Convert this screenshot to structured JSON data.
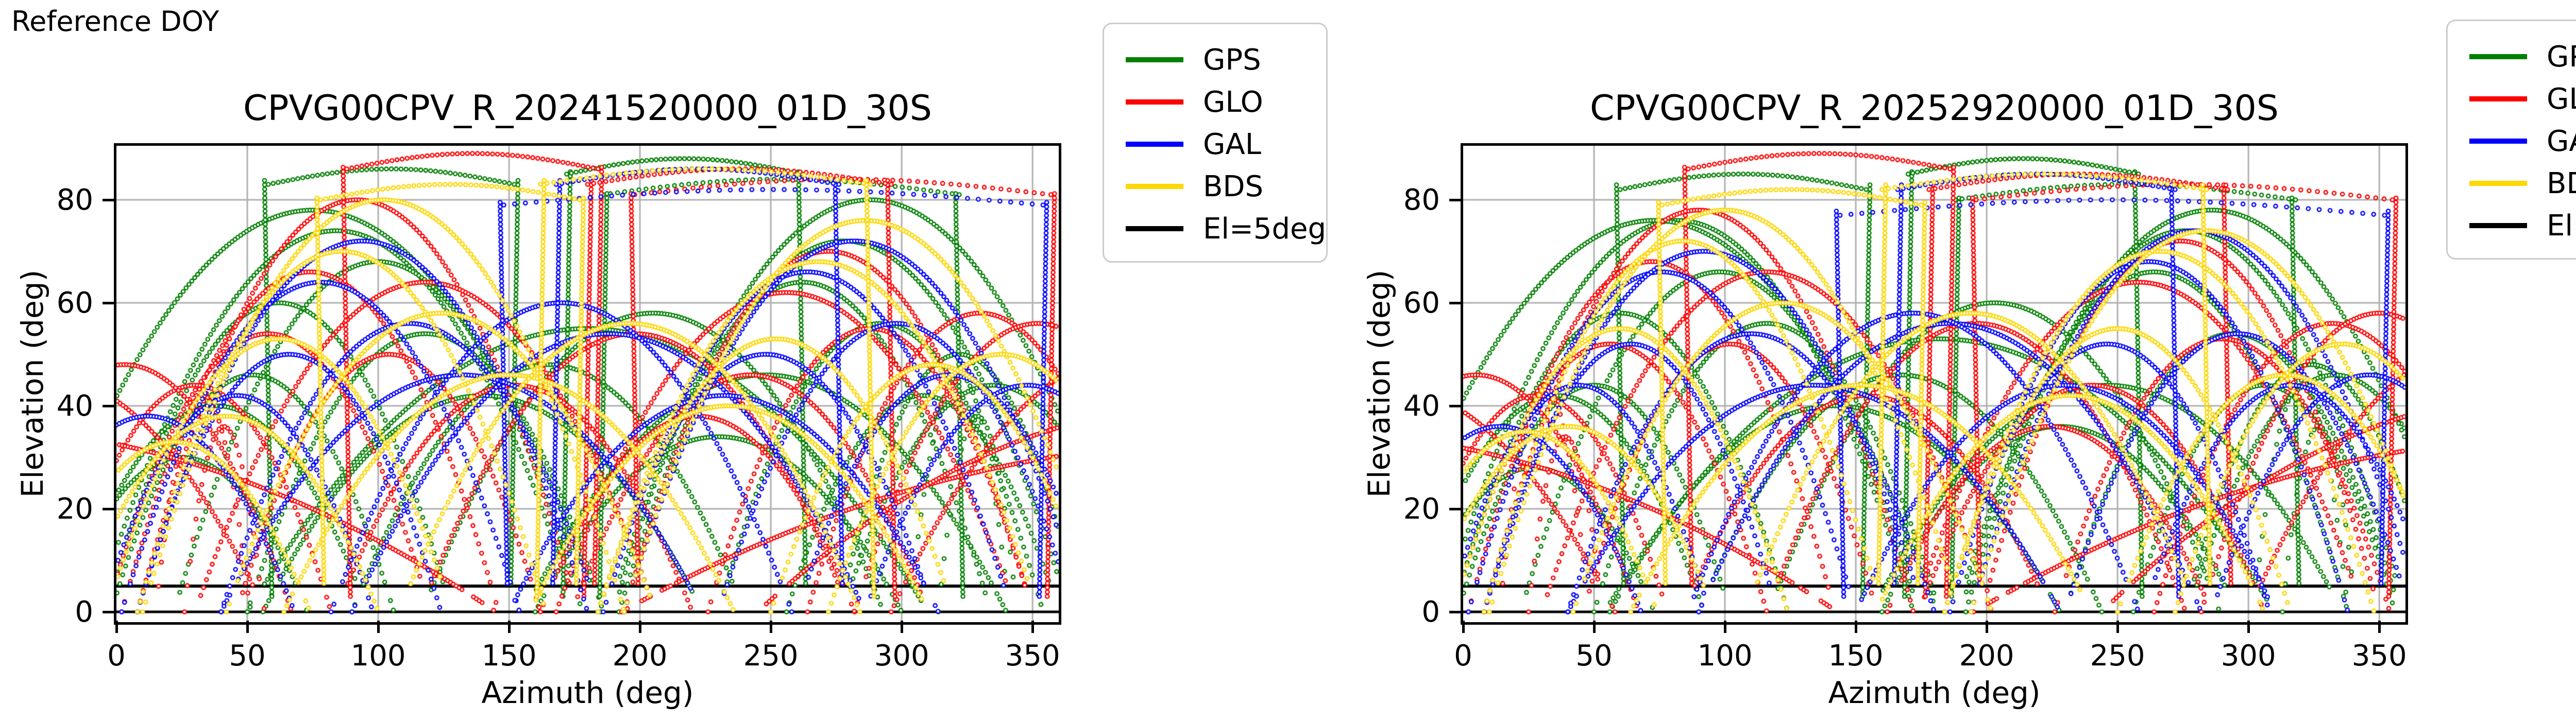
{
  "page": {
    "annotation": "Reference DOY",
    "background": "#ffffff"
  },
  "colors": {
    "GPS": "#008000",
    "GLO": "#ff0000",
    "GAL": "#0000ff",
    "BDS": "#ffd700",
    "threshold": "#000000",
    "zero_line": "#000000",
    "grid": "#b0b0b0",
    "spine": "#000000"
  },
  "legend": {
    "entries": [
      {
        "label": "GPS",
        "color": "#008000"
      },
      {
        "label": "GLO",
        "color": "#ff0000"
      },
      {
        "label": "GAL",
        "color": "#0000ff"
      },
      {
        "label": "BDS",
        "color": "#ffd700"
      },
      {
        "label": "El=5deg",
        "color": "#000000"
      }
    ],
    "position": "outside-upper-right"
  },
  "chart_data": [
    {
      "type": "scatter",
      "title": "CPVG00CPV_R_20241520000_01D_30S",
      "xlabel": "Azimuth (deg)",
      "ylabel": "Elevation (deg)",
      "xlim": [
        0,
        360
      ],
      "ylim": [
        -2,
        90.5
      ],
      "xticks": [
        0,
        50,
        100,
        150,
        200,
        250,
        300,
        350
      ],
      "yticks": [
        0,
        20,
        40,
        60,
        80
      ],
      "grid": true,
      "marker": "o",
      "threshold_elevation_deg": 5,
      "zero_elevation_line": 0,
      "below_threshold_style": "dashed",
      "series": [
        {
          "name": "GPS",
          "color": "#008000",
          "arcs": [
            [
              62,
              66,
              60
            ],
            [
              84,
              92,
              74
            ],
            [
              100,
              78,
              68
            ],
            [
              52,
              54,
              46
            ],
            [
              118,
              68,
              54
            ],
            [
              38,
              58,
              40
            ],
            [
              140,
              84,
              42
            ],
            [
              75,
              110,
              78
            ],
            [
              165,
              75,
              48
            ],
            [
              205,
              88,
              58
            ],
            [
              248,
              92,
              46
            ],
            [
              262,
              72,
              64
            ],
            [
              278,
              86,
              72
            ],
            [
              292,
              62,
              56
            ],
            [
              308,
              52,
              42
            ],
            [
              322,
              46,
              50
            ],
            [
              335,
              58,
              44
            ],
            [
              288,
              100,
              80
            ],
            [
              25,
              48,
              30
            ],
            [
              230,
              70,
              34
            ],
            [
              180,
              130,
              55
            ],
            [
              322,
              19,
              46
            ],
            [
              329,
              15,
              38
            ]
          ],
          "passes": [
            [
              172,
              262,
              88
            ],
            [
              152,
              58,
              86
            ],
            [
              186,
              322,
              84
            ]
          ]
        },
        {
          "name": "GLO",
          "color": "#ff0000",
          "arcs": [
            [
              74,
              72,
              66
            ],
            [
              92,
              84,
              80
            ],
            [
              58,
              62,
              54
            ],
            [
              118,
              88,
              64
            ],
            [
              30,
              52,
              44
            ],
            [
              104,
              58,
              50
            ],
            [
              152,
              68,
              44
            ],
            [
              198,
              82,
              54
            ],
            [
              242,
              68,
              46
            ],
            [
              256,
              88,
              62
            ],
            [
              272,
              78,
              70
            ],
            [
              288,
              62,
              55
            ],
            [
              330,
              66,
              58
            ],
            [
              3,
              64,
              48
            ],
            [
              352,
              70,
              56
            ],
            [
              222,
              60,
              38
            ],
            [
              -28,
              85,
              46
            ],
            [
              388,
              92,
              50
            ],
            [
              -65,
              210,
              36
            ],
            [
              428,
              235,
              33
            ],
            [
              415,
              170,
              40
            ],
            [
              33,
              18,
              42
            ],
            [
              41,
              15,
              36
            ]
          ],
          "passes": [
            [
              184,
              88,
              89
            ],
            [
              180,
              296,
              86
            ],
            [
              357,
              198,
              84
            ]
          ]
        },
        {
          "name": "GAL",
          "color": "#0000ff",
          "arcs": [
            [
              78,
              76,
              64
            ],
            [
              94,
              86,
              72
            ],
            [
              66,
              58,
              50
            ],
            [
              112,
              72,
              56
            ],
            [
              46,
              52,
              42
            ],
            [
              132,
              92,
              46
            ],
            [
              188,
              98,
              54
            ],
            [
              170,
              88,
              60
            ],
            [
              248,
              64,
              50
            ],
            [
              264,
              78,
              66
            ],
            [
              282,
              88,
              72
            ],
            [
              298,
              68,
              56
            ],
            [
              318,
              58,
              46
            ],
            [
              232,
              82,
              42
            ],
            [
              12,
              56,
              38
            ],
            [
              348,
              62,
              44
            ]
          ],
          "passes": [
            [
              168,
              276,
              86
            ],
            [
              354,
              148,
              82
            ]
          ]
        },
        {
          "name": "BDS",
          "color": "#ffd700",
          "arcs": [
            [
              86,
              78,
              70
            ],
            [
              102,
              92,
              80
            ],
            [
              62,
              66,
              53
            ],
            [
              124,
              82,
              58
            ],
            [
              42,
              58,
              38
            ],
            [
              150,
              86,
              46
            ],
            [
              196,
              88,
              56
            ],
            [
              252,
              68,
              53
            ],
            [
              268,
              84,
              68
            ],
            [
              286,
              92,
              76
            ],
            [
              234,
              76,
              40
            ],
            [
              312,
              62,
              48
            ],
            [
              338,
              66,
              50
            ],
            [
              22,
              52,
              33
            ]
          ],
          "passes": [
            [
              162,
              288,
              86
            ],
            [
              177,
              78,
              83
            ]
          ]
        }
      ]
    },
    {
      "type": "scatter",
      "title": "CPVG00CPV_R_20252920000_01D_30S",
      "xlabel": "Azimuth (deg)",
      "ylabel": "Elevation (deg)",
      "xlim": [
        0,
        360
      ],
      "ylim": [
        -2,
        90.5
      ],
      "xticks": [
        0,
        50,
        100,
        150,
        200,
        250,
        300,
        350
      ],
      "yticks": [
        0,
        20,
        40,
        60,
        80
      ],
      "grid": true,
      "marker": "o",
      "threshold_elevation_deg": 5,
      "zero_elevation_line": 0,
      "below_threshold_style": "dashed",
      "series": [
        {
          "name": "GPS",
          "color": "#008000",
          "arcs": [
            [
              60,
              64,
              58
            ],
            [
              82,
              90,
              76
            ],
            [
              98,
              76,
              66
            ],
            [
              50,
              52,
              44
            ],
            [
              116,
              66,
              56
            ],
            [
              36,
              56,
              42
            ],
            [
              142,
              86,
              40
            ],
            [
              73,
              108,
              76
            ],
            [
              167,
              77,
              46
            ],
            [
              203,
              86,
              60
            ],
            [
              246,
              90,
              44
            ],
            [
              264,
              74,
              66
            ],
            [
              276,
              84,
              74
            ],
            [
              294,
              64,
              54
            ],
            [
              306,
              50,
              44
            ],
            [
              324,
              48,
              48
            ],
            [
              333,
              56,
              46
            ],
            [
              286,
              98,
              78
            ],
            [
              27,
              46,
              28
            ],
            [
              228,
              68,
              36
            ],
            [
              182,
              128,
              53
            ],
            [
              320,
              18,
              44
            ],
            [
              327,
              14,
              36
            ]
          ],
          "passes": [
            [
              170,
              258,
              88
            ],
            [
              154,
              60,
              85
            ],
            [
              188,
              318,
              83
            ]
          ]
        },
        {
          "name": "GLO",
          "color": "#ff0000",
          "arcs": [
            [
              72,
              70,
              68
            ],
            [
              90,
              82,
              78
            ],
            [
              56,
              60,
              52
            ],
            [
              116,
              86,
              66
            ],
            [
              28,
              50,
              42
            ],
            [
              102,
              56,
              52
            ],
            [
              154,
              70,
              42
            ],
            [
              196,
              80,
              56
            ],
            [
              240,
              66,
              44
            ],
            [
              258,
              86,
              64
            ],
            [
              274,
              76,
              72
            ],
            [
              290,
              64,
              53
            ],
            [
              332,
              68,
              56
            ],
            [
              5,
              62,
              46
            ],
            [
              350,
              68,
              58
            ],
            [
              224,
              62,
              36
            ],
            [
              -30,
              88,
              44
            ],
            [
              390,
              90,
              52
            ],
            [
              -62,
              205,
              35
            ],
            [
              425,
              230,
              34
            ],
            [
              412,
              168,
              42
            ],
            [
              31,
              17,
              44
            ],
            [
              39,
              14,
              34
            ]
          ],
          "passes": [
            [
              186,
              86,
              89
            ],
            [
              178,
              292,
              85
            ],
            [
              355,
              196,
              83
            ]
          ]
        },
        {
          "name": "GAL",
          "color": "#0000ff",
          "arcs": [
            [
              76,
              74,
              66
            ],
            [
              92,
              84,
              70
            ],
            [
              64,
              56,
              52
            ],
            [
              110,
              70,
              54
            ],
            [
              44,
              50,
              44
            ],
            [
              134,
              94,
              44
            ],
            [
              186,
              96,
              56
            ],
            [
              172,
              86,
              58
            ],
            [
              246,
              62,
              52
            ],
            [
              262,
              76,
              68
            ],
            [
              280,
              86,
              74
            ],
            [
              296,
              66,
              54
            ],
            [
              316,
              56,
              44
            ],
            [
              230,
              80,
              44
            ],
            [
              14,
              54,
              36
            ],
            [
              346,
              60,
              46
            ]
          ],
          "passes": [
            [
              166,
              272,
              85
            ],
            [
              352,
              144,
              80
            ]
          ]
        },
        {
          "name": "BDS",
          "color": "#ffd700",
          "arcs": [
            [
              84,
              76,
              72
            ],
            [
              100,
              90,
              78
            ],
            [
              60,
              64,
              55
            ],
            [
              122,
              80,
              60
            ],
            [
              40,
              56,
              36
            ],
            [
              152,
              88,
              44
            ],
            [
              194,
              86,
              58
            ],
            [
              250,
              66,
              55
            ],
            [
              266,
              82,
              70
            ],
            [
              284,
              90,
              74
            ],
            [
              232,
              74,
              42
            ],
            [
              314,
              64,
              46
            ],
            [
              336,
              64,
              52
            ],
            [
              24,
              50,
              35
            ]
          ],
          "passes": [
            [
              160,
              284,
              85
            ],
            [
              175,
              76,
              82
            ]
          ]
        }
      ]
    }
  ]
}
